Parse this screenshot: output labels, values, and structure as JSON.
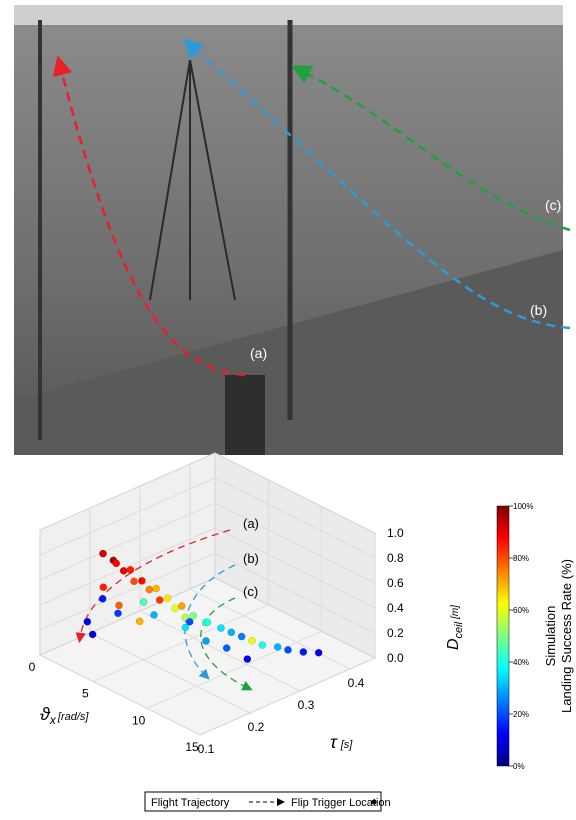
{
  "photo": {
    "labels": [
      "(a)",
      "(b)",
      "(c)"
    ]
  },
  "chart_data": {
    "type": "scatter3d",
    "x_label": {
      "symbol": "ϑ",
      "sub": "x",
      "unit": "[rad/s]"
    },
    "y_label": {
      "symbol": "τ",
      "unit": "[s]"
    },
    "z_label": {
      "symbol": "D",
      "sub": "ceil",
      "unit": "[m]"
    },
    "xlim": [
      0,
      15
    ],
    "xticks": [
      0,
      5,
      10,
      15
    ],
    "ylim": [
      0.1,
      0.45
    ],
    "yticks": [
      0.1,
      0.2,
      0.3,
      0.4
    ],
    "zlim": [
      0,
      1
    ],
    "zticks": [
      {
        "value": 0,
        "label": "0.0"
      },
      0.2,
      0.4,
      0.6,
      0.8,
      {
        "value": 1,
        "label": "1.0"
      }
    ],
    "annotations": [
      "(a)",
      "(b)",
      "(c)"
    ],
    "points": {
      "x": [
        4.5,
        5,
        4.8,
        5.5,
        5.2,
        6,
        5.8,
        6.5,
        6.2,
        7,
        6.8,
        7.5,
        7.2,
        8,
        7.8,
        8.5,
        8.2,
        9,
        9.5,
        10,
        10.5,
        11,
        11.5,
        12,
        12.5,
        13,
        5,
        6,
        7,
        4,
        4.5,
        6,
        8,
        9,
        10,
        11,
        5.5,
        7,
        3.5,
        4
      ],
      "y": [
        0.13,
        0.14,
        0.15,
        0.15,
        0.17,
        0.16,
        0.18,
        0.18,
        0.2,
        0.19,
        0.21,
        0.21,
        0.23,
        0.22,
        0.24,
        0.25,
        0.26,
        0.27,
        0.28,
        0.29,
        0.3,
        0.31,
        0.33,
        0.34,
        0.36,
        0.38,
        0.12,
        0.13,
        0.15,
        0.14,
        0.16,
        0.2,
        0.22,
        0.24,
        0.26,
        0.28,
        0.19,
        0.25,
        0.12,
        0.12
      ],
      "z": [
        0.95,
        0.9,
        0.85,
        0.82,
        0.78,
        0.74,
        0.7,
        0.66,
        0.62,
        0.58,
        0.55,
        0.5,
        0.47,
        0.43,
        0.4,
        0.36,
        0.33,
        0.3,
        0.27,
        0.24,
        0.21,
        0.18,
        0.15,
        0.13,
        0.1,
        0.08,
        0.72,
        0.6,
        0.48,
        0.55,
        0.42,
        0.4,
        0.35,
        0.25,
        0.2,
        0.12,
        0.5,
        0.3,
        0.38,
        0.3
      ],
      "rate": [
        92,
        95,
        88,
        90,
        85,
        80,
        87,
        75,
        70,
        82,
        65,
        60,
        72,
        55,
        50,
        45,
        40,
        35,
        30,
        25,
        60,
        40,
        30,
        20,
        15,
        10,
        85,
        78,
        70,
        15,
        18,
        30,
        35,
        28,
        22,
        12,
        45,
        20,
        12,
        10
      ]
    },
    "colorbar": {
      "title": [
        "Simulation",
        "Landing Success Rate (%)"
      ],
      "clim": [
        0,
        100
      ],
      "ticks": [
        {
          "value": 0,
          "label": "0%"
        },
        {
          "value": 20,
          "label": "20%"
        },
        {
          "value": 40,
          "label": "40%"
        },
        {
          "value": 60,
          "label": "60%"
        },
        {
          "value": 80,
          "label": "80%"
        },
        {
          "value": 100,
          "label": "100%"
        }
      ]
    },
    "legend": [
      "Flight Trajectory",
      "Flip Trigger Location"
    ]
  }
}
